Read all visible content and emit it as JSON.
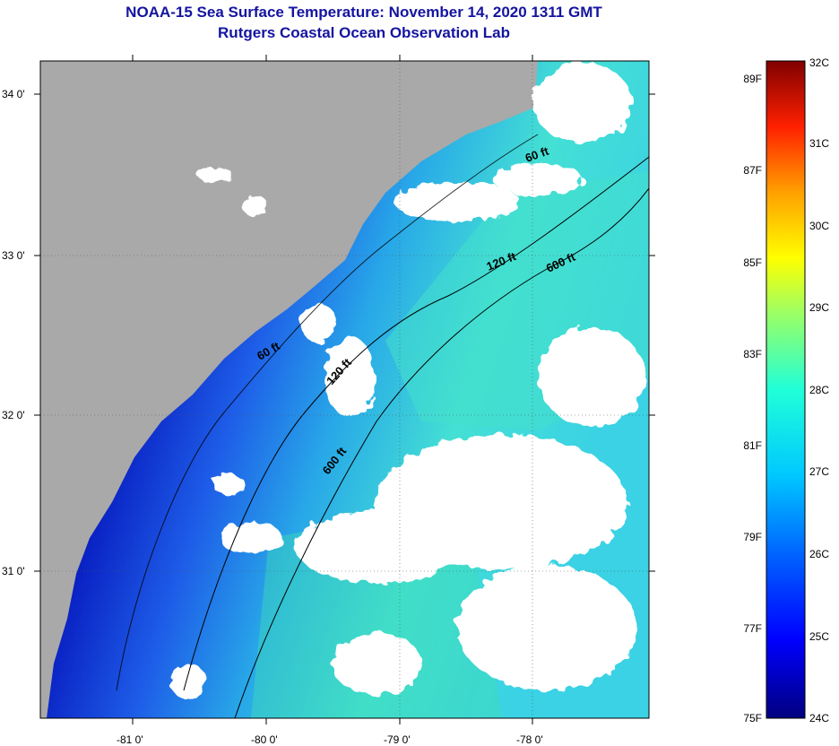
{
  "title": "NOAA-15 Sea Surface Temperature:  November 14, 2020 1311 GMT",
  "subtitle": "Rutgers Coastal Ocean Observation Lab",
  "map": {
    "lat_labels": [
      "34 0'",
      "33 0'",
      "32 0'",
      "31 0'"
    ],
    "lon_labels": [
      "-81 0'",
      "-80 0'",
      "-79 0'",
      "-78 0'"
    ],
    "contours": [
      {
        "label": "60 ft",
        "depth_ft": 60
      },
      {
        "label": "120 ft",
        "depth_ft": 120
      },
      {
        "label": "600 ft",
        "depth_ft": 600
      }
    ],
    "contour_label_instances": [
      "60 ft",
      "60 ft",
      "120 ft",
      "120 ft",
      "600 ft",
      "600 ft"
    ],
    "colors": {
      "land": "#a9a9a9",
      "cloud": "#ffffff",
      "cold_nearshore": "#0a1aa8",
      "offshore_warm": "#3fe3d6"
    }
  },
  "colorbar": {
    "fahrenheit": [
      "89F",
      "87F",
      "85F",
      "83F",
      "81F",
      "79F",
      "77F",
      "75F"
    ],
    "celsius": [
      "32C",
      "31C",
      "30C",
      "29C",
      "28C",
      "27C",
      "26C",
      "25C",
      "24C"
    ],
    "range_c": [
      24,
      32
    ]
  }
}
